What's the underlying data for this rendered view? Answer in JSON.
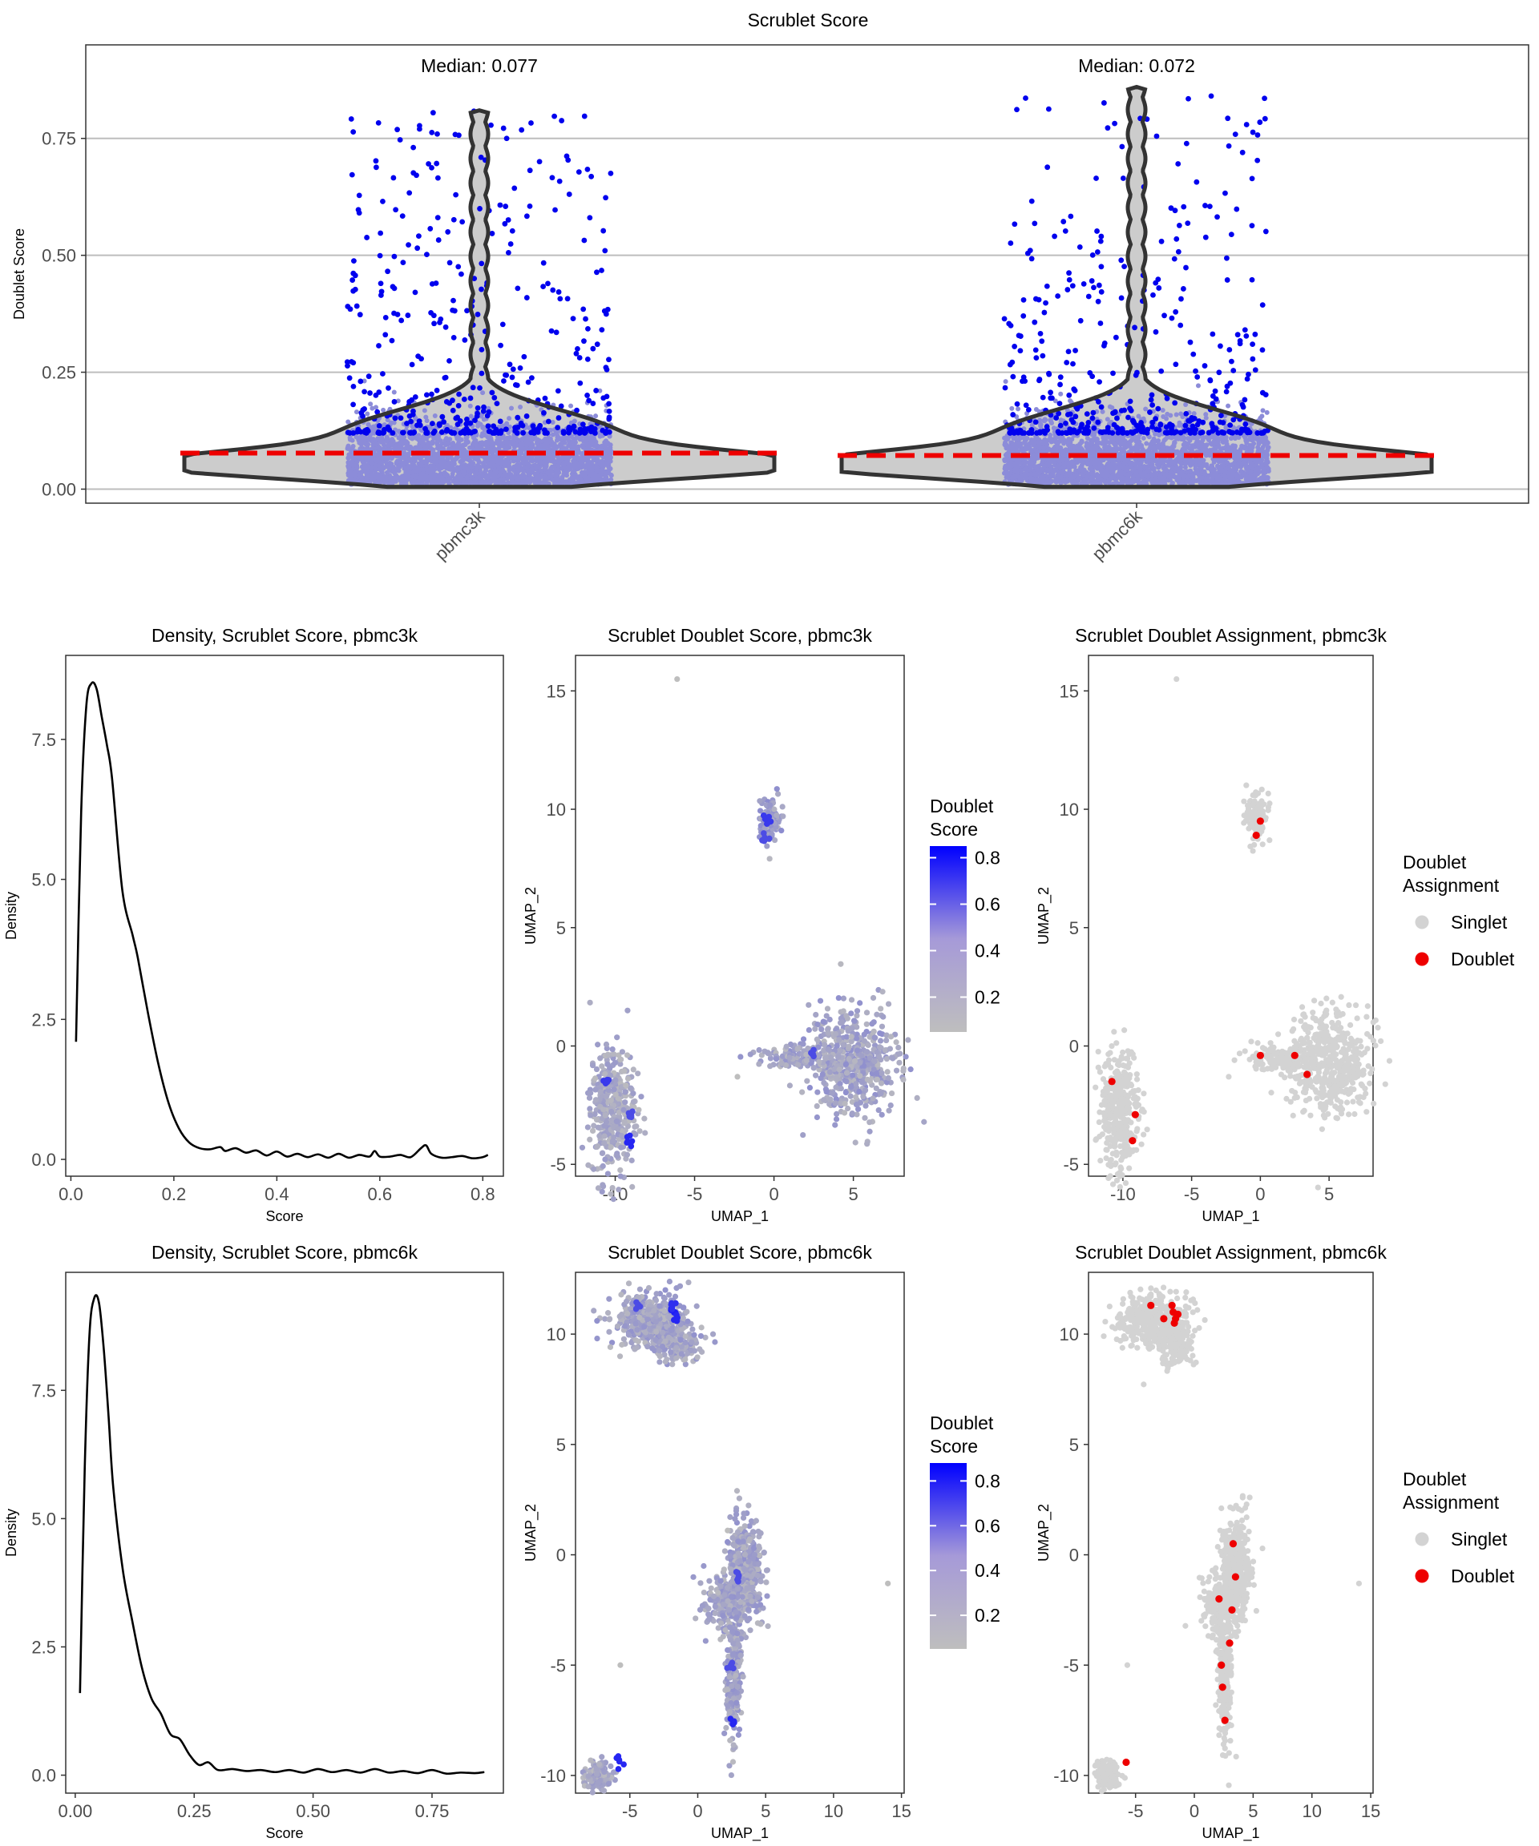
{
  "chart_data": [
    {
      "type": "violin",
      "title": "Scrublet Score",
      "ylabel": "Doublet Score",
      "categories": [
        "pbmc3k",
        "pbmc6k"
      ],
      "ylim": [
        -0.03,
        0.95
      ],
      "yticks": [
        0.0,
        0.25,
        0.5,
        0.75
      ],
      "ytick_labels": [
        "0.00",
        "0.25",
        "0.50",
        "0.75"
      ],
      "medians": [
        0.077,
        0.072
      ],
      "median_labels": [
        "Median: 0.077",
        "Median: 0.072"
      ],
      "max_values": [
        0.81,
        0.86
      ],
      "grid": "horizontal",
      "colors": {
        "singlet": "#8c8cd9",
        "doublet": "#0000ee",
        "violin_fill": "#cccccc",
        "violin_edge": "#333333",
        "median_line": "#ee0000"
      }
    },
    {
      "type": "line",
      "title": "Density, Scrublet Score, pbmc3k",
      "xlabel": "Score",
      "ylabel": "Density",
      "xlim": [
        -0.01,
        0.84
      ],
      "ylim": [
        -0.3,
        9.0
      ],
      "xticks": [
        0.0,
        0.2,
        0.4,
        0.6,
        0.8
      ],
      "xtick_labels": [
        "0.0",
        "0.2",
        "0.4",
        "0.6",
        "0.8"
      ],
      "yticks": [
        0.0,
        2.5,
        5.0,
        7.5
      ],
      "ytick_labels": [
        "0.0",
        "2.5",
        "5.0",
        "7.5"
      ],
      "x": [
        0.01,
        0.02,
        0.03,
        0.04,
        0.05,
        0.06,
        0.07,
        0.08,
        0.1,
        0.12,
        0.13,
        0.15,
        0.17,
        0.19,
        0.21,
        0.23,
        0.25,
        0.27,
        0.29,
        0.3,
        0.32,
        0.34,
        0.36,
        0.38,
        0.4,
        0.42,
        0.44,
        0.46,
        0.48,
        0.5,
        0.52,
        0.54,
        0.56,
        0.58,
        0.59,
        0.6,
        0.62,
        0.64,
        0.66,
        0.68,
        0.69,
        0.7,
        0.72,
        0.74,
        0.76,
        0.78,
        0.8,
        0.81
      ],
      "y": [
        2.1,
        6.2,
        8.1,
        8.5,
        8.4,
        7.9,
        7.4,
        6.8,
        4.8,
        4.0,
        3.6,
        2.6,
        1.7,
        1.0,
        0.55,
        0.3,
        0.2,
        0.18,
        0.22,
        0.15,
        0.2,
        0.12,
        0.16,
        0.07,
        0.14,
        0.05,
        0.1,
        0.04,
        0.09,
        0.03,
        0.1,
        0.03,
        0.08,
        0.05,
        0.15,
        0.05,
        0.05,
        0.08,
        0.04,
        0.2,
        0.25,
        0.1,
        0.03,
        0.04,
        0.06,
        0.02,
        0.04,
        0.08
      ]
    },
    {
      "type": "scatter",
      "title": "Scrublet Doublet Score, pbmc3k",
      "xlabel": "UMAP_1",
      "ylabel": "UMAP_2",
      "xlim": [
        -12.5,
        8.2
      ],
      "ylim": [
        -5.5,
        16.5
      ],
      "xticks": [
        -10,
        -5,
        0,
        5
      ],
      "xtick_labels": [
        "-10",
        "-5",
        "0",
        "5"
      ],
      "yticks": [
        -5,
        0,
        5,
        10,
        15
      ],
      "ytick_labels": [
        "-5",
        "0",
        "5",
        "10",
        "15"
      ],
      "legend": {
        "title_lines": [
          "Doublet",
          "Score"
        ],
        "kind": "colorbar",
        "ticks": [
          0.2,
          0.4,
          0.6,
          0.8
        ],
        "tick_labels": [
          "0.2",
          "0.4",
          "0.6",
          "0.8"
        ],
        "range": [
          0.05,
          0.85
        ],
        "low_color": "#bebebe",
        "high_color": "#0000ff",
        "placement": "right"
      },
      "clusters": [
        {
          "cx": -0.3,
          "cy": 9.6,
          "sx": 0.35,
          "sy": 0.5,
          "n": 120,
          "score": 0.35
        },
        {
          "cx": -10.2,
          "cy": -2.8,
          "sx": 0.7,
          "sy": 1.3,
          "n": 360,
          "score": 0.25
        },
        {
          "cx": 5.0,
          "cy": -0.7,
          "sx": 1.4,
          "sy": 1.1,
          "n": 520,
          "score": 0.32
        },
        {
          "cx": 1.3,
          "cy": -0.5,
          "sx": 1.2,
          "sy": 0.25,
          "n": 120,
          "score": 0.3
        }
      ],
      "highlights": [
        {
          "x": -0.3,
          "y": 9.5,
          "score": 0.7
        },
        {
          "x": -9.2,
          "y": -4.0,
          "score": 0.8
        },
        {
          "x": -10.6,
          "y": -1.5,
          "score": 0.7
        },
        {
          "x": -0.5,
          "y": 8.7,
          "score": 0.6
        },
        {
          "x": 2.5,
          "y": -0.4,
          "score": 0.6
        },
        {
          "x": -9.0,
          "y": -2.9,
          "score": 0.6
        }
      ],
      "outliers": [
        {
          "x": -6.1,
          "y": 15.5
        },
        {
          "x": -2.3,
          "y": -1.3
        }
      ]
    },
    {
      "type": "scatter",
      "title": "Scrublet Doublet Assignment, pbmc3k",
      "xlabel": "UMAP_1",
      "ylabel": "UMAP_2",
      "xlim": [
        -12.5,
        8.2
      ],
      "ylim": [
        -5.5,
        16.5
      ],
      "xticks": [
        -10,
        -5,
        0,
        5
      ],
      "xtick_labels": [
        "-10",
        "-5",
        "0",
        "5"
      ],
      "yticks": [
        -5,
        0,
        5,
        10,
        15
      ],
      "ytick_labels": [
        "-5",
        "0",
        "5",
        "10",
        "15"
      ],
      "legend": {
        "title_lines": [
          "Doublet",
          "Assignment"
        ],
        "kind": "categorical",
        "entries": [
          "Singlet",
          "Doublet"
        ],
        "colors": [
          "#d3d3d3",
          "#ee0000"
        ],
        "placement": "right"
      },
      "clusters": [
        {
          "cx": -0.3,
          "cy": 9.6,
          "sx": 0.35,
          "sy": 0.5,
          "n": 120
        },
        {
          "cx": -10.2,
          "cy": -2.8,
          "sx": 0.7,
          "sy": 1.3,
          "n": 360
        },
        {
          "cx": 5.0,
          "cy": -0.7,
          "sx": 1.4,
          "sy": 1.1,
          "n": 520
        },
        {
          "cx": 1.3,
          "cy": -0.5,
          "sx": 1.2,
          "sy": 0.25,
          "n": 120
        }
      ],
      "doublets": [
        {
          "x": 0.0,
          "y": 9.5
        },
        {
          "x": -0.3,
          "y": 8.9
        },
        {
          "x": -9.3,
          "y": -4.0
        },
        {
          "x": -10.8,
          "y": -1.5
        },
        {
          "x": -9.1,
          "y": -2.9
        },
        {
          "x": 0.0,
          "y": -0.4
        },
        {
          "x": 2.5,
          "y": -0.4
        },
        {
          "x": 3.4,
          "y": -1.2
        }
      ],
      "outliers": [
        {
          "x": -6.1,
          "y": 15.5
        },
        {
          "x": -2.3,
          "y": -1.3
        }
      ]
    },
    {
      "type": "line",
      "title": "Density, Scrublet Score, pbmc6k",
      "xlabel": "Score",
      "ylabel": "Density",
      "xlim": [
        -0.02,
        0.9
      ],
      "ylim": [
        -0.35,
        9.8
      ],
      "xticks": [
        0.0,
        0.25,
        0.5,
        0.75
      ],
      "xtick_labels": [
        "0.00",
        "0.25",
        "0.50",
        "0.75"
      ],
      "yticks": [
        0.0,
        2.5,
        5.0,
        7.5
      ],
      "ytick_labels": [
        "0.0",
        "2.5",
        "5.0",
        "7.5"
      ],
      "x": [
        0.01,
        0.02,
        0.03,
        0.04,
        0.05,
        0.06,
        0.07,
        0.08,
        0.1,
        0.12,
        0.14,
        0.16,
        0.18,
        0.2,
        0.22,
        0.24,
        0.26,
        0.28,
        0.3,
        0.33,
        0.36,
        0.39,
        0.42,
        0.45,
        0.48,
        0.51,
        0.54,
        0.57,
        0.6,
        0.63,
        0.66,
        0.69,
        0.72,
        0.75,
        0.78,
        0.81,
        0.84,
        0.86
      ],
      "y": [
        1.6,
        6.0,
        8.6,
        9.3,
        9.2,
        8.3,
        7.0,
        5.6,
        4.0,
        3.0,
        2.1,
        1.5,
        1.2,
        0.8,
        0.7,
        0.4,
        0.2,
        0.25,
        0.1,
        0.12,
        0.08,
        0.1,
        0.06,
        0.1,
        0.05,
        0.12,
        0.06,
        0.1,
        0.05,
        0.12,
        0.05,
        0.08,
        0.04,
        0.1,
        0.03,
        0.05,
        0.04,
        0.06
      ]
    },
    {
      "type": "scatter",
      "title": "Scrublet Doublet Score, pbmc6k",
      "xlabel": "UMAP_1",
      "ylabel": "UMAP_2",
      "xlim": [
        -9.0,
        15.2
      ],
      "ylim": [
        -10.8,
        12.8
      ],
      "xticks": [
        -5,
        0,
        5,
        10,
        15
      ],
      "xtick_labels": [
        "-5",
        "0",
        "5",
        "10",
        "15"
      ],
      "yticks": [
        -10,
        -5,
        0,
        5,
        10
      ],
      "ytick_labels": [
        "-10",
        "-5",
        "0",
        "5",
        "10"
      ],
      "legend": {
        "title_lines": [
          "Doublet",
          "Score"
        ],
        "kind": "colorbar",
        "ticks": [
          0.2,
          0.4,
          0.6,
          0.8
        ],
        "tick_labels": [
          "0.2",
          "0.4",
          "0.6",
          "0.8"
        ],
        "range": [
          0.05,
          0.88
        ],
        "low_color": "#bebebe",
        "high_color": "#0000ff",
        "placement": "right"
      },
      "clusters": [
        {
          "cx": -3.5,
          "cy": 10.6,
          "sx": 1.4,
          "sy": 0.6,
          "n": 420,
          "score": 0.3
        },
        {
          "cx": -1.6,
          "cy": 9.6,
          "sx": 0.8,
          "sy": 0.5,
          "n": 160,
          "score": 0.3
        },
        {
          "cx": 3.5,
          "cy": -0.6,
          "sx": 0.6,
          "sy": 1.1,
          "n": 420,
          "score": 0.3
        },
        {
          "cx": 2.3,
          "cy": -2.2,
          "sx": 0.9,
          "sy": 0.6,
          "n": 220,
          "score": 0.3
        },
        {
          "cx": 2.6,
          "cy": -5.5,
          "sx": 0.3,
          "sy": 1.6,
          "n": 230,
          "score": 0.3
        },
        {
          "cx": -7.3,
          "cy": -10.0,
          "sx": 0.5,
          "sy": 0.3,
          "n": 160,
          "score": 0.25
        }
      ],
      "highlights": [
        {
          "x": -1.8,
          "y": 11.0,
          "score": 0.85
        },
        {
          "x": -1.6,
          "y": 10.7,
          "score": 0.8
        },
        {
          "x": -1.9,
          "y": 11.3,
          "score": 0.75
        },
        {
          "x": -4.5,
          "y": 11.3,
          "score": 0.6
        },
        {
          "x": 2.6,
          "y": -7.5,
          "score": 0.8
        },
        {
          "x": -5.8,
          "y": -9.4,
          "score": 0.8
        },
        {
          "x": 3.0,
          "y": -1.0,
          "score": 0.6
        },
        {
          "x": 2.4,
          "y": -5.0,
          "score": 0.6
        }
      ],
      "outliers": [
        {
          "x": 14.0,
          "y": -1.3
        },
        {
          "x": -5.7,
          "y": -5.0
        },
        {
          "x": 2.2,
          "y": 1.1
        }
      ]
    },
    {
      "type": "scatter",
      "title": "Scrublet Doublet Assignment, pbmc6k",
      "xlabel": "UMAP_1",
      "ylabel": "UMAP_2",
      "xlim": [
        -9.0,
        15.2
      ],
      "ylim": [
        -10.8,
        12.8
      ],
      "xticks": [
        -5,
        0,
        5,
        10,
        15
      ],
      "xtick_labels": [
        "-5",
        "0",
        "5",
        "10",
        "15"
      ],
      "yticks": [
        -10,
        -5,
        0,
        5,
        10
      ],
      "ytick_labels": [
        "-10",
        "-5",
        "0",
        "5",
        "10"
      ],
      "legend": {
        "title_lines": [
          "Doublet",
          "Assignment"
        ],
        "kind": "categorical",
        "entries": [
          "Singlet",
          "Doublet"
        ],
        "colors": [
          "#d3d3d3",
          "#ee0000"
        ],
        "placement": "right"
      },
      "clusters": [
        {
          "cx": -3.5,
          "cy": 10.6,
          "sx": 1.4,
          "sy": 0.6,
          "n": 420
        },
        {
          "cx": -1.6,
          "cy": 9.6,
          "sx": 0.8,
          "sy": 0.5,
          "n": 160
        },
        {
          "cx": 3.5,
          "cy": -0.6,
          "sx": 0.6,
          "sy": 1.1,
          "n": 420
        },
        {
          "cx": 2.3,
          "cy": -2.2,
          "sx": 0.9,
          "sy": 0.6,
          "n": 220
        },
        {
          "cx": 2.6,
          "cy": -5.5,
          "sx": 0.3,
          "sy": 1.6,
          "n": 230
        },
        {
          "cx": -7.3,
          "cy": -10.0,
          "sx": 0.5,
          "sy": 0.3,
          "n": 160
        }
      ],
      "doublets": [
        {
          "x": -1.8,
          "y": 11.0
        },
        {
          "x": -1.6,
          "y": 10.7
        },
        {
          "x": -1.9,
          "y": 11.3
        },
        {
          "x": -1.7,
          "y": 10.5
        },
        {
          "x": -1.4,
          "y": 10.9
        },
        {
          "x": -3.7,
          "y": 11.3
        },
        {
          "x": -2.6,
          "y": 10.7
        },
        {
          "x": -5.8,
          "y": -9.4
        },
        {
          "x": 2.6,
          "y": -7.5
        },
        {
          "x": 2.3,
          "y": -5.0
        },
        {
          "x": 2.4,
          "y": -6.0
        },
        {
          "x": 3.2,
          "y": -2.5
        },
        {
          "x": 3.5,
          "y": -1.0
        },
        {
          "x": 2.1,
          "y": -2.0
        },
        {
          "x": 3.0,
          "y": -4.0
        },
        {
          "x": 3.3,
          "y": 0.5
        }
      ],
      "outliers": [
        {
          "x": 14.0,
          "y": -1.3
        },
        {
          "x": -5.7,
          "y": -5.0
        },
        {
          "x": 2.2,
          "y": 1.1
        }
      ]
    }
  ]
}
